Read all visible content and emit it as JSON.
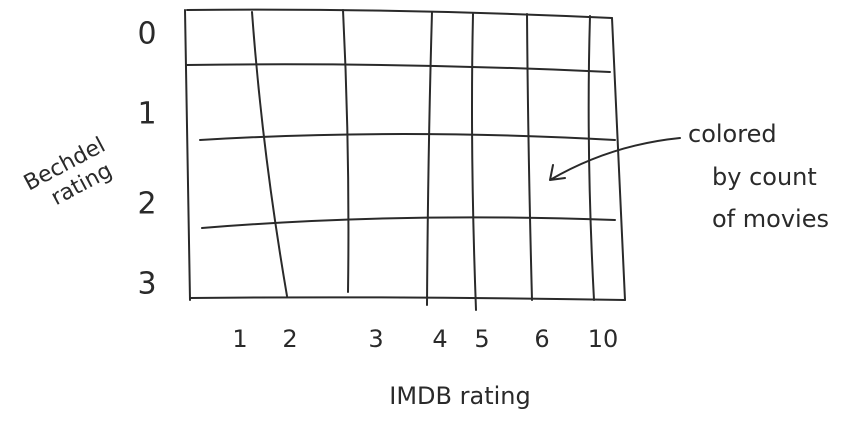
{
  "y_axis": {
    "title": [
      "Bechdel",
      "rating"
    ],
    "labels": [
      "0",
      "1",
      "2",
      "3"
    ]
  },
  "x_axis": {
    "title": "IMDB rating",
    "labels": [
      "1",
      "2",
      "3",
      "4",
      "5",
      "6",
      "10"
    ]
  },
  "annotation": [
    "colored",
    "by count",
    "of movies"
  ]
}
